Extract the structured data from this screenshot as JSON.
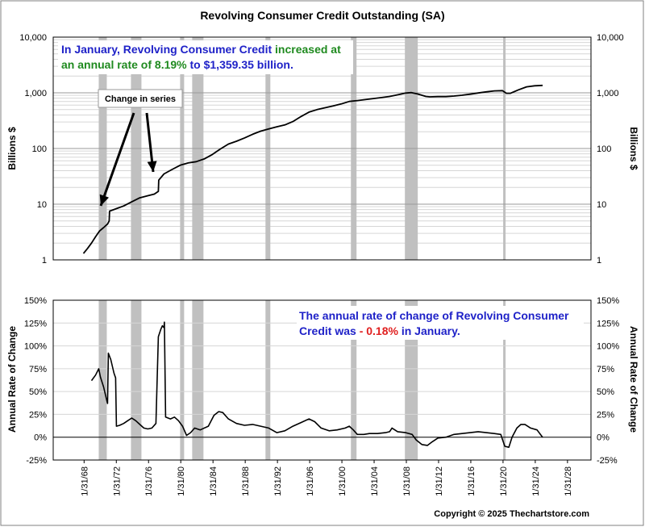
{
  "chart_data": [
    {
      "type": "line",
      "title": "Revolving Consumer Credit Outstanding (SA)",
      "ylabel_left": "Billions $",
      "ylabel_right": "Billions $",
      "yscale": "log",
      "ylim": [
        1,
        10000
      ],
      "yticks": [
        "1",
        "10",
        "100",
        "1,000",
        "10,000"
      ],
      "annotation": {
        "line1_a": "In January, Revolving Consumer Credit",
        "line1_b": " increased at",
        "line2_a": "an annual rate of 8.19%",
        "line2_b": " to $1,359.35 billion.",
        "color_primary": "#1f22c8",
        "color_secondary": "#1f8a1f"
      },
      "callout": "Change in series",
      "series": [
        {
          "values": [
            [
              1968.0,
              1.3
            ],
            [
              1968.5,
              1.6
            ],
            [
              1969.0,
              2.0
            ],
            [
              1969.5,
              2.6
            ],
            [
              1970.0,
              3.3
            ],
            [
              1970.5,
              3.8
            ],
            [
              1971.0,
              4.4
            ],
            [
              1971.2,
              5.0
            ],
            [
              1971.25,
              7.5
            ],
            [
              1972.0,
              8.2
            ],
            [
              1973.0,
              9.3
            ],
            [
              1974.0,
              11.0
            ],
            [
              1975.0,
              13.0
            ],
            [
              1976.0,
              14.2
            ],
            [
              1976.8,
              15.2
            ],
            [
              1977.3,
              17.0
            ],
            [
              1977.35,
              27.0
            ],
            [
              1978.0,
              35.0
            ],
            [
              1979.0,
              42.0
            ],
            [
              1980.0,
              50.0
            ],
            [
              1981.0,
              55.0
            ],
            [
              1982.0,
              58.0
            ],
            [
              1983.0,
              65.0
            ],
            [
              1984.0,
              78.0
            ],
            [
              1985.0,
              98.0
            ],
            [
              1986.0,
              120.0
            ],
            [
              1987.0,
              135.0
            ],
            [
              1988.0,
              155.0
            ],
            [
              1989.0,
              180.0
            ],
            [
              1990.0,
              205.0
            ],
            [
              1991.0,
              225.0
            ],
            [
              1992.0,
              245.0
            ],
            [
              1993.0,
              265.0
            ],
            [
              1994.0,
              305.0
            ],
            [
              1995.0,
              375.0
            ],
            [
              1996.0,
              450.0
            ],
            [
              1997.0,
              500.0
            ],
            [
              1998.0,
              540.0
            ],
            [
              1999.0,
              580.0
            ],
            [
              2000.0,
              630.0
            ],
            [
              2001.0,
              700.0
            ],
            [
              2002.0,
              725.0
            ],
            [
              2003.0,
              755.0
            ],
            [
              2004.0,
              790.0
            ],
            [
              2005.0,
              820.0
            ],
            [
              2006.0,
              860.0
            ],
            [
              2007.0,
              920.0
            ],
            [
              2008.0,
              990.0
            ],
            [
              2008.7,
              1010.0
            ],
            [
              2009.5,
              950.0
            ],
            [
              2010.5,
              860.0
            ],
            [
              2011.0,
              845.0
            ],
            [
              2012.0,
              855.0
            ],
            [
              2013.0,
              855.0
            ],
            [
              2014.0,
              875.0
            ],
            [
              2015.0,
              905.0
            ],
            [
              2016.0,
              945.0
            ],
            [
              2017.0,
              995.0
            ],
            [
              2018.0,
              1040.0
            ],
            [
              2019.0,
              1085.0
            ],
            [
              2020.0,
              1095.0
            ],
            [
              2020.5,
              980.0
            ],
            [
              2021.0,
              980.0
            ],
            [
              2022.0,
              1130.0
            ],
            [
              2023.0,
              1280.0
            ],
            [
              2024.0,
              1335.0
            ],
            [
              2025.0,
              1359.35
            ]
          ]
        }
      ]
    },
    {
      "type": "line",
      "ylabel_left": "Annual Rate of Change",
      "ylabel_right": "Annual Rate of Change",
      "ylim": [
        -25,
        150
      ],
      "yticks": [
        "-25%",
        "0%",
        "25%",
        "50%",
        "75%",
        "100%",
        "125%",
        "150%"
      ],
      "annotation": {
        "line1": "The annual rate of change of Revolving Consumer",
        "line2_a": "Credit was ",
        "line2_b": "- 0.18%",
        "line2_c": " in January.",
        "color_primary": "#1f22c8",
        "color_negative": "#e02020"
      },
      "series": [
        {
          "values": [
            [
              1969.0,
              62
            ],
            [
              1969.5,
              68
            ],
            [
              1969.9,
              75
            ],
            [
              1970.1,
              66
            ],
            [
              1970.5,
              55
            ],
            [
              1970.9,
              40
            ],
            [
              1971.0,
              37
            ],
            [
              1971.1,
              92
            ],
            [
              1971.4,
              85
            ],
            [
              1971.8,
              70
            ],
            [
              1972.0,
              65
            ],
            [
              1972.1,
              12
            ],
            [
              1972.5,
              13
            ],
            [
              1973.0,
              15
            ],
            [
              1973.5,
              18
            ],
            [
              1974.0,
              21
            ],
            [
              1974.5,
              18
            ],
            [
              1975.0,
              14
            ],
            [
              1975.5,
              10
            ],
            [
              1976.0,
              9
            ],
            [
              1976.5,
              10
            ],
            [
              1977.0,
              15
            ],
            [
              1977.3,
              110
            ],
            [
              1977.6,
              118
            ],
            [
              1977.8,
              122
            ],
            [
              1978.0,
              120
            ],
            [
              1978.05,
              126
            ],
            [
              1978.2,
              22
            ],
            [
              1978.8,
              20
            ],
            [
              1979.3,
              22
            ],
            [
              1979.8,
              18
            ],
            [
              1980.3,
              12
            ],
            [
              1980.8,
              2
            ],
            [
              1981.3,
              5
            ],
            [
              1981.8,
              10
            ],
            [
              1982.5,
              8
            ],
            [
              1983.5,
              12
            ],
            [
              1984.2,
              24
            ],
            [
              1984.8,
              28
            ],
            [
              1985.3,
              27
            ],
            [
              1986.0,
              20
            ],
            [
              1987.0,
              15
            ],
            [
              1988.0,
              13
            ],
            [
              1989.0,
              14
            ],
            [
              1990.0,
              12
            ],
            [
              1991.0,
              10
            ],
            [
              1992.0,
              5
            ],
            [
              1993.0,
              7
            ],
            [
              1994.0,
              12
            ],
            [
              1995.0,
              16
            ],
            [
              1996.0,
              20
            ],
            [
              1996.7,
              17
            ],
            [
              1997.5,
              10
            ],
            [
              1998.5,
              7
            ],
            [
              1999.5,
              8
            ],
            [
              2000.5,
              10
            ],
            [
              2001.0,
              12
            ],
            [
              2001.5,
              8
            ],
            [
              2002.0,
              3
            ],
            [
              2002.8,
              3
            ],
            [
              2003.5,
              4
            ],
            [
              2004.5,
              4
            ],
            [
              2005.5,
              5
            ],
            [
              2006.0,
              6
            ],
            [
              2006.3,
              10
            ],
            [
              2007.0,
              6
            ],
            [
              2008.0,
              5
            ],
            [
              2008.8,
              3
            ],
            [
              2009.3,
              -3
            ],
            [
              2010.0,
              -8
            ],
            [
              2010.7,
              -9
            ],
            [
              2011.3,
              -5
            ],
            [
              2012.0,
              -1
            ],
            [
              2013.0,
              0
            ],
            [
              2014.0,
              3
            ],
            [
              2015.0,
              4
            ],
            [
              2016.0,
              5
            ],
            [
              2017.0,
              6
            ],
            [
              2018.0,
              5
            ],
            [
              2019.0,
              4
            ],
            [
              2019.8,
              3
            ],
            [
              2020.3,
              -10
            ],
            [
              2020.8,
              -11
            ],
            [
              2021.2,
              0
            ],
            [
              2021.8,
              10
            ],
            [
              2022.3,
              14
            ],
            [
              2022.8,
              14
            ],
            [
              2023.5,
              10
            ],
            [
              2024.3,
              8
            ],
            [
              2025.0,
              -0.18
            ]
          ]
        }
      ]
    }
  ],
  "x_tick_labels": [
    "1/31/68",
    "1/31/72",
    "1/31/76",
    "1/31/80",
    "1/31/84",
    "1/31/88",
    "1/31/92",
    "1/31/96",
    "1/31/00",
    "1/31/04",
    "1/31/08",
    "1/31/12",
    "1/31/16",
    "1/31/20",
    "1/31/24",
    "1/31/28"
  ],
  "recessions": [
    [
      1969.9,
      1970.9
    ],
    [
      1973.9,
      1975.2
    ],
    [
      1980.0,
      1980.5
    ],
    [
      1981.5,
      1982.9
    ],
    [
      1990.6,
      1991.2
    ],
    [
      2001.2,
      2001.9
    ],
    [
      2007.9,
      2009.5
    ],
    [
      2020.1,
      2020.4
    ]
  ],
  "colors": {
    "recession": "#c0c0c0",
    "line": "#000000"
  },
  "copyright": "Copyright © 2025 Thechartstore.com"
}
